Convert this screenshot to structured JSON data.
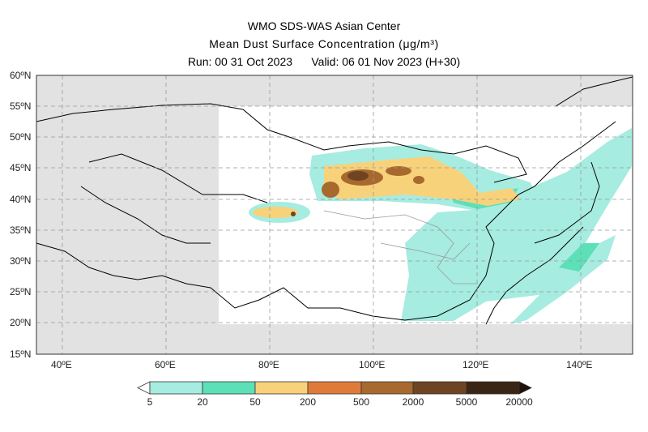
{
  "header": {
    "title": "WMO SDS-WAS Asian Center",
    "subtitle": "Mean Dust Surface Concentration (μg/m³)",
    "run": "Run: 00 31 Oct 2023",
    "valid": "Valid: 06 01 Nov 2023 (H+30)"
  },
  "map": {
    "lat_labels": [
      "60ºN",
      "55ºN",
      "50ºN",
      "45ºN",
      "40ºN",
      "35ºN",
      "30ºN",
      "25ºN",
      "20ºN",
      "15ºN"
    ],
    "lon_labels": [
      "40ºE",
      "60ºE",
      "80ºE",
      "100ºE",
      "120ºE",
      "140ºE"
    ],
    "lon_range": [
      35,
      150
    ],
    "lat_range": [
      15,
      60
    ],
    "colors": {
      "outside_domain": "#e2e2e2",
      "land": "#ffffff"
    }
  },
  "colorbar": {
    "ticks": [
      "5",
      "20",
      "50",
      "200",
      "500",
      "2000",
      "5000",
      "20000"
    ],
    "colors": [
      "#a6ece0",
      "#5ce0b8",
      "#f8d27a",
      "#e07a3a",
      "#a8692e",
      "#6e4422",
      "#3a2414"
    ]
  }
}
